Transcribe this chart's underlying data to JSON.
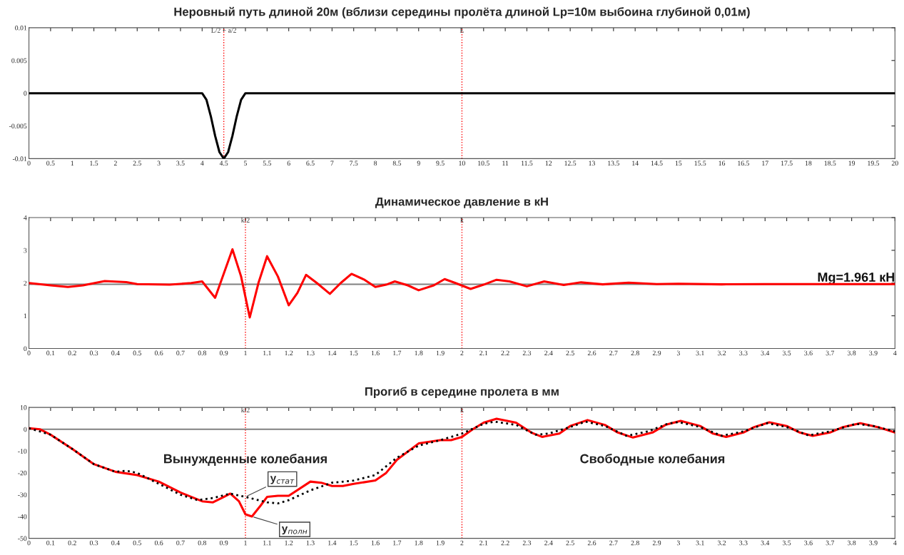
{
  "chart_data": [
    {
      "type": "line",
      "title": "Неровный путь длиной 20м (вблизи середины пролёта длиной Lp=10м выбоина глубиной 0,01м)",
      "series": [
        {
          "color": "#000000",
          "x": [
            0,
            4.0,
            4.1,
            4.2,
            4.3,
            4.4,
            4.5,
            4.6,
            4.7,
            4.8,
            4.9,
            5.0,
            20
          ],
          "values": [
            0,
            0,
            -0.001,
            -0.0035,
            -0.0065,
            -0.009,
            -0.01,
            -0.009,
            -0.0065,
            -0.0035,
            -0.001,
            0,
            0
          ]
        }
      ],
      "xlim": [
        0,
        20
      ],
      "ylim": [
        -0.01,
        0.01
      ],
      "xticks": [
        0,
        0.5,
        1,
        1.5,
        2,
        2.5,
        3,
        3.5,
        4,
        4.5,
        5,
        5.5,
        6,
        6.5,
        7,
        7.5,
        8,
        8.5,
        9,
        9.5,
        10,
        10.5,
        11,
        11.5,
        12,
        12.5,
        13,
        13.5,
        14,
        14.5,
        15,
        15.5,
        16,
        16.5,
        17,
        17.5,
        18,
        18.5,
        19,
        19.5,
        20
      ],
      "yticks": [
        -0.01,
        -0.005,
        0,
        0.005,
        0.01
      ],
      "ref_lines": [
        {
          "axis": "x",
          "value": 4.5,
          "label": "L/2 − a/2",
          "color": "#ff0000",
          "line_style": "dotted"
        },
        {
          "axis": "x",
          "value": 10,
          "label": "L",
          "color": "#ff0000",
          "line_style": "dotted"
        }
      ],
      "grid": false,
      "legend": false
    },
    {
      "type": "line",
      "title": "Динамическое давление в кН",
      "series": [
        {
          "color": "#ff0000",
          "x": [
            0,
            0.1,
            0.18,
            0.25,
            0.35,
            0.45,
            0.5,
            0.65,
            0.75,
            0.8,
            0.86,
            0.94,
            0.98,
            1.02,
            1.06,
            1.1,
            1.15,
            1.2,
            1.24,
            1.28,
            1.33,
            1.39,
            1.44,
            1.49,
            1.55,
            1.6,
            1.65,
            1.69,
            1.75,
            1.8,
            1.87,
            1.92,
            1.97,
            2.04,
            2.1,
            2.16,
            2.22,
            2.3,
            2.38,
            2.47,
            2.55,
            2.65,
            2.77,
            2.9,
            3.0,
            3.2,
            3.4,
            4
          ],
          "values": [
            2.0,
            1.93,
            1.88,
            1.93,
            2.06,
            2.03,
            1.97,
            1.95,
            2.0,
            2.05,
            1.55,
            3.03,
            2.2,
            0.95,
            2.0,
            2.82,
            2.2,
            1.32,
            1.7,
            2.25,
            2.0,
            1.67,
            2.0,
            2.28,
            2.1,
            1.88,
            1.95,
            2.05,
            1.93,
            1.78,
            1.93,
            2.12,
            2.0,
            1.82,
            1.95,
            2.1,
            2.05,
            1.9,
            2.05,
            1.94,
            2.02,
            1.96,
            2.01,
            1.97,
            1.98,
            1.96,
            1.97,
            1.97
          ]
        }
      ],
      "xlim": [
        0,
        4
      ],
      "ylim": [
        0,
        4
      ],
      "xticks": [
        0,
        0.1,
        0.2,
        0.3,
        0.4,
        0.5,
        0.6,
        0.7,
        0.8,
        0.9,
        1,
        1.1,
        1.2,
        1.3,
        1.4,
        1.5,
        1.6,
        1.7,
        1.8,
        1.9,
        2,
        2.1,
        2.2,
        2.3,
        2.4,
        2.5,
        2.6,
        2.7,
        2.8,
        2.9,
        3,
        3.1,
        3.2,
        3.3,
        3.4,
        3.5,
        3.6,
        3.7,
        3.8,
        3.9,
        4
      ],
      "yticks": [
        0,
        1,
        2,
        3,
        4
      ],
      "ref_lines": [
        {
          "axis": "x",
          "value": 1,
          "label": "k/2",
          "color": "#ff0000",
          "line_style": "dotted"
        },
        {
          "axis": "x",
          "value": 2,
          "label": "k",
          "color": "#ff0000",
          "line_style": "dotted"
        },
        {
          "axis": "y",
          "value": 1.961,
          "label": "Mg=1.961 кН",
          "color": "#808080",
          "line_style": "solid"
        }
      ],
      "grid": false,
      "legend": false
    },
    {
      "type": "line",
      "title": "Прогиб в середине пролета в мм",
      "series": [
        {
          "color": "#ff0000",
          "line_style": "solid",
          "x": [
            0,
            0.05,
            0.1,
            0.2,
            0.3,
            0.4,
            0.5,
            0.6,
            0.7,
            0.8,
            0.85,
            0.9,
            0.93,
            0.97,
            1.0,
            1.03,
            1.07,
            1.1,
            1.15,
            1.2,
            1.3,
            1.35,
            1.4,
            1.45,
            1.5,
            1.6,
            1.65,
            1.7,
            1.8,
            1.9,
            1.95,
            2.0,
            2.05,
            2.1,
            2.16,
            2.25,
            2.32,
            2.37,
            2.45,
            2.5,
            2.58,
            2.66,
            2.72,
            2.79,
            2.88,
            2.94,
            3.01,
            3.1,
            3.16,
            3.22,
            3.3,
            3.35,
            3.42,
            3.5,
            3.56,
            3.62,
            3.7,
            3.76,
            3.84,
            3.92,
            4.0
          ],
          "values": [
            0.5,
            0,
            -2.5,
            -9,
            -16,
            -19.5,
            -21,
            -24,
            -29,
            -33,
            -33.5,
            -31,
            -29.5,
            -33,
            -39,
            -40,
            -35,
            -31,
            -30.5,
            -30.5,
            -24,
            -24.5,
            -26,
            -26,
            -25,
            -23.5,
            -20,
            -14,
            -6.5,
            -5,
            -5,
            -3.5,
            0,
            3,
            4.8,
            3,
            -1.5,
            -3.5,
            -2,
            1.5,
            4.2,
            2,
            -1.5,
            -3.8,
            -1.5,
            2,
            3.8,
            1.5,
            -2,
            -3.5,
            -1.5,
            1,
            3.2,
            1.5,
            -1.5,
            -3,
            -1.5,
            1,
            2.8,
            1,
            -1.5
          ]
        },
        {
          "color": "#000000",
          "line_style": "dotted",
          "x": [
            0,
            0.1,
            0.2,
            0.3,
            0.4,
            0.45,
            0.5,
            0.6,
            0.7,
            0.78,
            0.85,
            0.93,
            1.0,
            1.1,
            1.15,
            1.2,
            1.3,
            1.4,
            1.5,
            1.6,
            1.7,
            1.8,
            1.9,
            2.0,
            2.1,
            2.15,
            2.25,
            2.34,
            2.4,
            2.5,
            2.57,
            2.66,
            2.76,
            2.86,
            2.95,
            3.0,
            3.1,
            3.2,
            3.3,
            3.41,
            3.5,
            3.6,
            3.7,
            3.82,
            3.9,
            4.0
          ],
          "values": [
            0.5,
            -2.5,
            -9,
            -16,
            -19.5,
            -19,
            -20,
            -25,
            -30,
            -32.5,
            -31.5,
            -29.5,
            -31,
            -33.5,
            -34,
            -32.5,
            -28,
            -24.5,
            -23.5,
            -21,
            -13,
            -7.5,
            -5,
            -2,
            2.5,
            3.5,
            2,
            -2.5,
            -2,
            1,
            3.5,
            1.5,
            -3,
            -1,
            2.5,
            3.3,
            1,
            -3,
            -1,
            2.8,
            1,
            -2.8,
            -1,
            2.5,
            1.5,
            -1
          ]
        }
      ],
      "xlim": [
        0,
        4
      ],
      "ylim": [
        -50,
        10
      ],
      "xticks": [
        0,
        0.1,
        0.2,
        0.3,
        0.4,
        0.5,
        0.6,
        0.7,
        0.8,
        0.9,
        1,
        1.1,
        1.2,
        1.3,
        1.4,
        1.5,
        1.6,
        1.7,
        1.8,
        1.9,
        2,
        2.1,
        2.2,
        2.3,
        2.4,
        2.5,
        2.6,
        2.7,
        2.8,
        2.9,
        3,
        3.1,
        3.2,
        3.3,
        3.4,
        3.5,
        3.6,
        3.7,
        3.8,
        3.9,
        4
      ],
      "yticks": [
        -50,
        -40,
        -30,
        -20,
        -10,
        0,
        10
      ],
      "ref_lines": [
        {
          "axis": "x",
          "value": 1,
          "label": "k/2",
          "color": "#ff0000",
          "line_style": "dotted"
        },
        {
          "axis": "x",
          "value": 2,
          "label": "k",
          "color": "#ff0000",
          "line_style": "dotted"
        },
        {
          "axis": "y",
          "value": 0,
          "label": null,
          "color": "#808080",
          "line_style": "solid"
        }
      ],
      "annotations": [
        "Вынужденные колебания",
        "Свободные колебания",
        {
          "text": "y$_{стат}$",
          "x": 1.0,
          "y": -31
        },
        {
          "text": "y$_{полн}$",
          "x": 1.03,
          "y": -40
        }
      ],
      "grid": false,
      "legend": false
    }
  ]
}
